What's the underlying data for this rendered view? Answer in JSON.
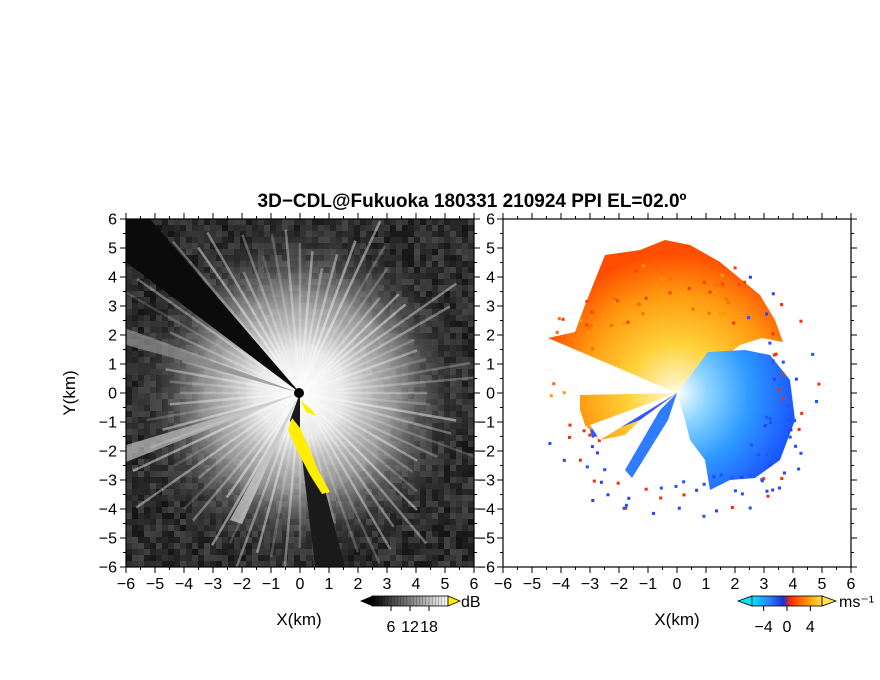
{
  "title": "3D−CDL@Fukuoka 180331 210924 PPI EL=02.0º",
  "chart_data": [
    {
      "type": "heatmap",
      "panel": "reflectivity",
      "xlabel": "X(km)",
      "ylabel": "Y(km)",
      "xlim": [
        -6,
        6
      ],
      "ylim": [
        -6,
        6
      ],
      "x_ticks": [
        "−6",
        "−5",
        "−4",
        "−3",
        "−2",
        "−1",
        "0",
        "1",
        "2",
        "3",
        "4",
        "5",
        "6"
      ],
      "y_ticks": [
        "−6",
        "−5",
        "−4",
        "−3",
        "−2",
        "−1",
        "0",
        "1",
        "2",
        "3",
        "4",
        "5",
        "6"
      ],
      "colorbar": {
        "unit": "dB",
        "ticks": [
          "6",
          "12",
          "18"
        ],
        "range": [
          0,
          24
        ]
      },
      "colors": {
        "low": "#000000",
        "high": "#ffffff",
        "flag": "#ffee00"
      },
      "sector_azimuths_deg": [
        {
          "az": 295,
          "value": "low"
        },
        {
          "az": 210,
          "value": "mid"
        },
        {
          "az": 160,
          "value": "highlight"
        }
      ]
    },
    {
      "type": "heatmap",
      "panel": "doppler_velocity",
      "xlabel": "X(km)",
      "xlim": [
        -6,
        6
      ],
      "ylim": [
        -6,
        6
      ],
      "x_ticks": [
        "−6",
        "−5",
        "−4",
        "−3",
        "−2",
        "−1",
        "0",
        "1",
        "2",
        "3",
        "4",
        "5",
        "6"
      ],
      "y_ticks": [
        "−6",
        "−5",
        "−4",
        "−3",
        "−2",
        "−1",
        "0",
        "1",
        "2",
        "3",
        "4",
        "5",
        "6"
      ],
      "colorbar": {
        "unit": "ms⁻¹",
        "ticks": [
          "−4",
          "0",
          "4"
        ],
        "range": [
          -6,
          6
        ]
      },
      "colors": {
        "neg_strong": "#1a3cff",
        "neg": "#1e90ff",
        "neg_light": "#4fc3f7",
        "pos_light": "#ffe14d",
        "pos": "#ff8c00",
        "pos_strong": "#e83000"
      }
    }
  ]
}
